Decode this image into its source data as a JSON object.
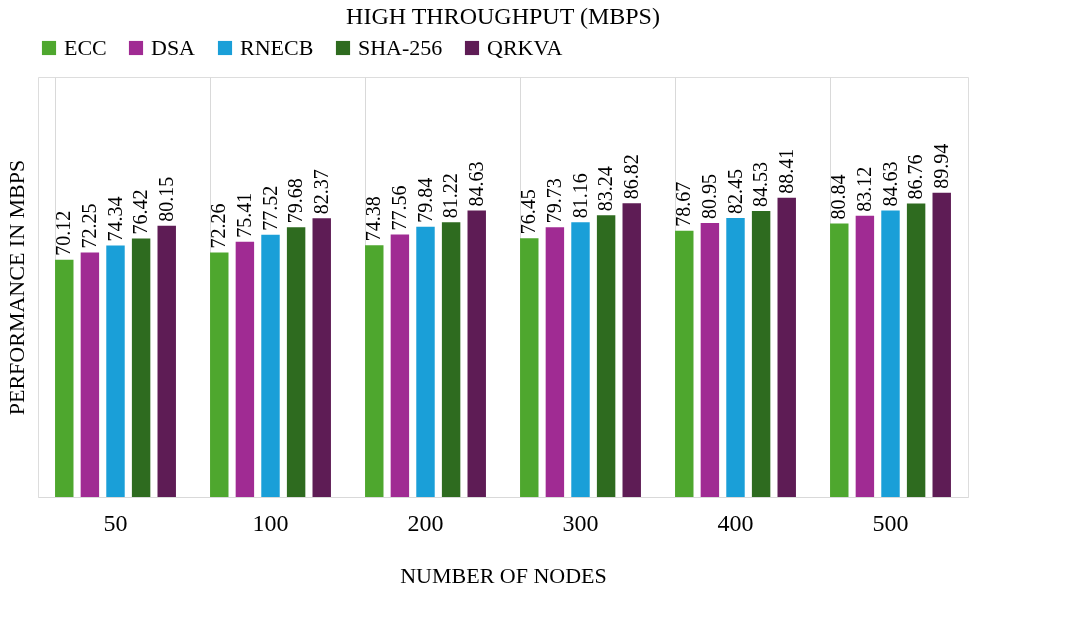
{
  "chart_data": {
    "type": "bar",
    "title": "HIGH THROUGHPUT (MBPS)",
    "xlabel": "NUMBER OF NODES",
    "ylabel": "PERFORMANCE IN MBPS",
    "categories": [
      "50",
      "100",
      "200",
      "300",
      "400",
      "500"
    ],
    "series": [
      {
        "name": "ECC",
        "color": "#4ea72e",
        "values": [
          70.12,
          72.26,
          74.38,
          76.45,
          78.67,
          80.84
        ]
      },
      {
        "name": "DSA",
        "color": "#a02b93",
        "values": [
          72.25,
          75.41,
          77.56,
          79.73,
          80.95,
          83.12
        ]
      },
      {
        "name": "RNECB",
        "color": "#1a9fd8",
        "values": [
          74.34,
          77.52,
          79.84,
          81.16,
          82.45,
          84.63
        ]
      },
      {
        "name": "SHA-256",
        "color": "#2e6b1f",
        "values": [
          76.42,
          79.68,
          81.22,
          83.24,
          84.53,
          86.76
        ]
      },
      {
        "name": "QRKVA",
        "color": "#5e1c55",
        "values": [
          80.15,
          82.37,
          84.63,
          86.82,
          88.41,
          89.94
        ]
      }
    ],
    "data_labels": true,
    "grid": "x",
    "legend": "top"
  }
}
